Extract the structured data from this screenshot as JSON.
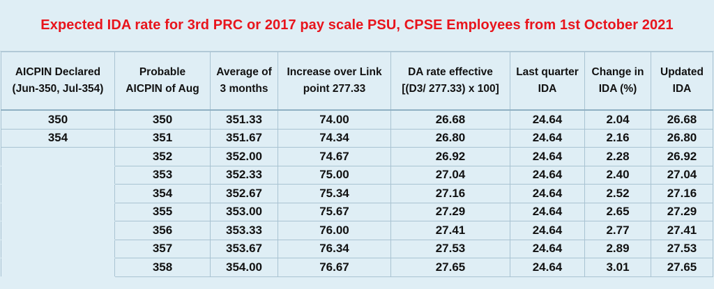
{
  "title": "Expected IDA rate for 3rd PRC or 2017 pay scale PSU, CPSE Employees from 1st October 2021",
  "headers": {
    "c1": {
      "line1": "AICPIN Declared",
      "line2": "(Jun-350, Jul-354)"
    },
    "c2": {
      "line1": "Probable",
      "line2": "AICPIN of Aug"
    },
    "c3": {
      "line1": "Average of",
      "line2": "3 months"
    },
    "c4": {
      "line1": "Increase over Link",
      "line2": "point 277.33"
    },
    "c5": {
      "line1": "DA rate effective",
      "line2": "[(D3/ 277.33) x 100]"
    },
    "c6": {
      "line1": "Last quarter",
      "line2": "IDA"
    },
    "c7": {
      "line1": "Change in",
      "line2": "IDA (%)"
    },
    "c8": {
      "line1": "Updated",
      "line2": "IDA"
    }
  },
  "rows": [
    {
      "declared": "350",
      "probable": "350",
      "average": "351.33",
      "increase": "74.00",
      "da_rate": "26.68",
      "last_ida": "24.64",
      "change": "2.04",
      "updated": "26.68"
    },
    {
      "declared": "354",
      "probable": "351",
      "average": "351.67",
      "increase": "74.34",
      "da_rate": "26.80",
      "last_ida": "24.64",
      "change": "2.16",
      "updated": "26.80"
    },
    {
      "declared": "",
      "probable": "352",
      "average": "352.00",
      "increase": "74.67",
      "da_rate": "26.92",
      "last_ida": "24.64",
      "change": "2.28",
      "updated": "26.92"
    },
    {
      "declared": "",
      "probable": "353",
      "average": "352.33",
      "increase": "75.00",
      "da_rate": "27.04",
      "last_ida": "24.64",
      "change": "2.40",
      "updated": "27.04"
    },
    {
      "declared": "",
      "probable": "354",
      "average": "352.67",
      "increase": "75.34",
      "da_rate": "27.16",
      "last_ida": "24.64",
      "change": "2.52",
      "updated": "27.16"
    },
    {
      "declared": "",
      "probable": "355",
      "average": "353.00",
      "increase": "75.67",
      "da_rate": "27.29",
      "last_ida": "24.64",
      "change": "2.65",
      "updated": "27.29"
    },
    {
      "declared": "",
      "probable": "356",
      "average": "353.33",
      "increase": "76.00",
      "da_rate": "27.41",
      "last_ida": "24.64",
      "change": "2.77",
      "updated": "27.41"
    },
    {
      "declared": "",
      "probable": "357",
      "average": "353.67",
      "increase": "76.34",
      "da_rate": "27.53",
      "last_ida": "24.64",
      "change": "2.89",
      "updated": "27.53"
    },
    {
      "declared": "",
      "probable": "358",
      "average": "354.00",
      "increase": "76.67",
      "da_rate": "27.65",
      "last_ida": "24.64",
      "change": "3.01",
      "updated": "27.65"
    }
  ],
  "colors": {
    "title": "#e8141c",
    "background": "#dfeef5",
    "grid": "#a9c3d2"
  }
}
